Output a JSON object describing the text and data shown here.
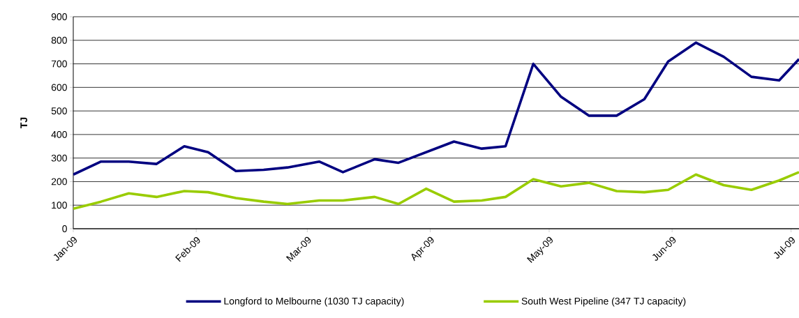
{
  "chart_data": {
    "type": "line",
    "ylabel": "TJ",
    "x": [
      "2009-01-01",
      "2009-01-08",
      "2009-01-15",
      "2009-01-22",
      "2009-01-29",
      "2009-02-04",
      "2009-02-11",
      "2009-02-18",
      "2009-02-24",
      "2009-03-04",
      "2009-03-10",
      "2009-03-18",
      "2009-03-24",
      "2009-03-31",
      "2009-04-07",
      "2009-04-14",
      "2009-04-20",
      "2009-04-27",
      "2009-05-04",
      "2009-05-11",
      "2009-05-18",
      "2009-05-25",
      "2009-05-31",
      "2009-06-07",
      "2009-06-14",
      "2009-06-21",
      "2009-06-28",
      "2009-07-03"
    ],
    "series": [
      {
        "name": "Longford to Melbourne (1030 TJ capacity)",
        "color": "#000080",
        "values": [
          230,
          285,
          285,
          275,
          350,
          325,
          245,
          250,
          260,
          285,
          240,
          295,
          280,
          325,
          370,
          340,
          350,
          700,
          560,
          480,
          480,
          550,
          710,
          790,
          730,
          645,
          630,
          720
        ]
      },
      {
        "name": "South West Pipeline (347 TJ capacity)",
        "color": "#99cc00",
        "values": [
          85,
          115,
          150,
          135,
          160,
          155,
          130,
          115,
          105,
          120,
          120,
          135,
          105,
          170,
          115,
          120,
          135,
          210,
          180,
          195,
          160,
          155,
          165,
          230,
          185,
          165,
          205,
          240
        ]
      }
    ],
    "xlim": [
      "2009-01-01",
      "2009-07-03"
    ],
    "xticks": [
      {
        "value": "2009-01-01",
        "label": "Jan-09"
      },
      {
        "value": "2009-02-01",
        "label": "Feb-09"
      },
      {
        "value": "2009-03-01",
        "label": "Mar-09"
      },
      {
        "value": "2009-04-01",
        "label": "Apr-09"
      },
      {
        "value": "2009-05-01",
        "label": "May-09"
      },
      {
        "value": "2009-06-01",
        "label": "Jun-09"
      },
      {
        "value": "2009-07-01",
        "label": "Jul-09"
      }
    ],
    "ylim": [
      0,
      900
    ],
    "yticks": [
      0,
      100,
      200,
      300,
      400,
      500,
      600,
      700,
      800,
      900
    ],
    "grid": "y",
    "legend": "bottom"
  }
}
